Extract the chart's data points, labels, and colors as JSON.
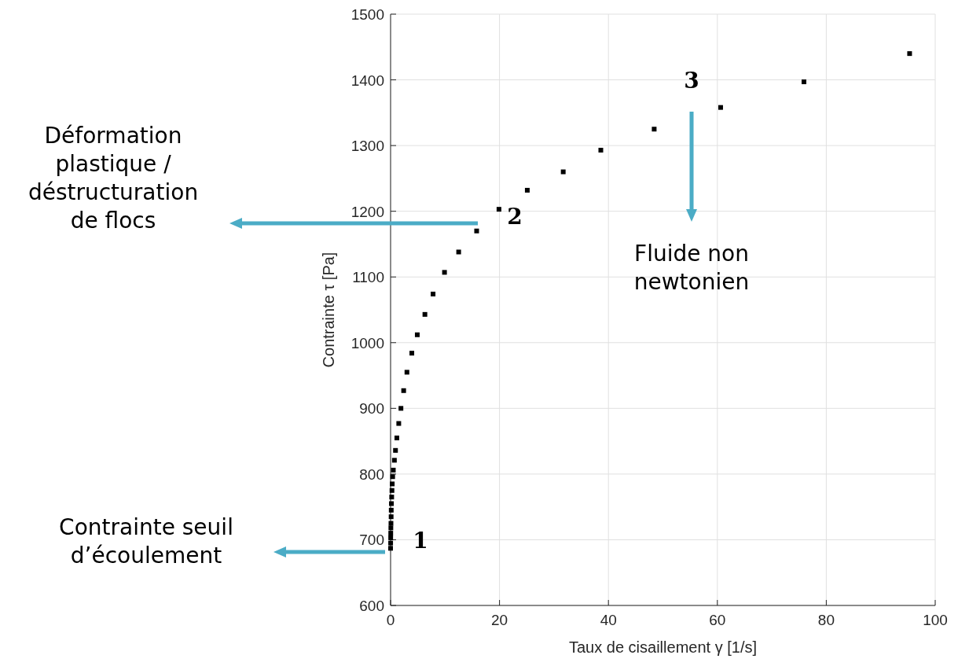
{
  "chart_data": {
    "type": "scatter",
    "xlabel": "Taux de cisaillement γ [1/s]",
    "ylabel": "Contrainte τ [Pa]",
    "xlim": [
      0,
      100
    ],
    "xticks": [
      0,
      20,
      40,
      60,
      80,
      100
    ],
    "ylim": [
      600,
      1500
    ],
    "yticks": [
      600,
      700,
      800,
      900,
      1000,
      1100,
      1200,
      1300,
      1400,
      1500
    ],
    "grid": true,
    "marker": "square",
    "x": [
      0,
      0.01,
      0.02,
      0.03,
      0.05,
      0.07,
      0.1,
      0.12,
      0.15,
      0.2,
      0.25,
      0.3,
      0.38,
      0.5,
      0.7,
      0.9,
      1.15,
      1.5,
      1.9,
      2.4,
      3.0,
      3.9,
      4.9,
      6.3,
      7.8,
      9.9,
      12.5,
      15.8,
      19.9,
      25.1,
      31.7,
      38.6,
      48.4,
      60.6,
      75.9,
      95.3
    ],
    "series": [
      {
        "color": "#000000",
        "values": [
          687,
          695,
          703,
          710,
          718,
          725,
          735,
          745,
          755,
          765,
          775,
          785,
          796,
          806,
          821,
          836,
          855,
          877,
          900,
          927,
          955,
          984,
          1012,
          1043,
          1074,
          1107,
          1138,
          1170,
          1203,
          1232,
          1260,
          1293,
          1325,
          1358,
          1397,
          1440
        ]
      }
    ],
    "annotations": [
      "Contrainte seuil d’écoulement",
      "Déformation plastique / déstructuration de flocs",
      "Fluide non newtonien",
      "1",
      "2",
      "3"
    ]
  }
}
